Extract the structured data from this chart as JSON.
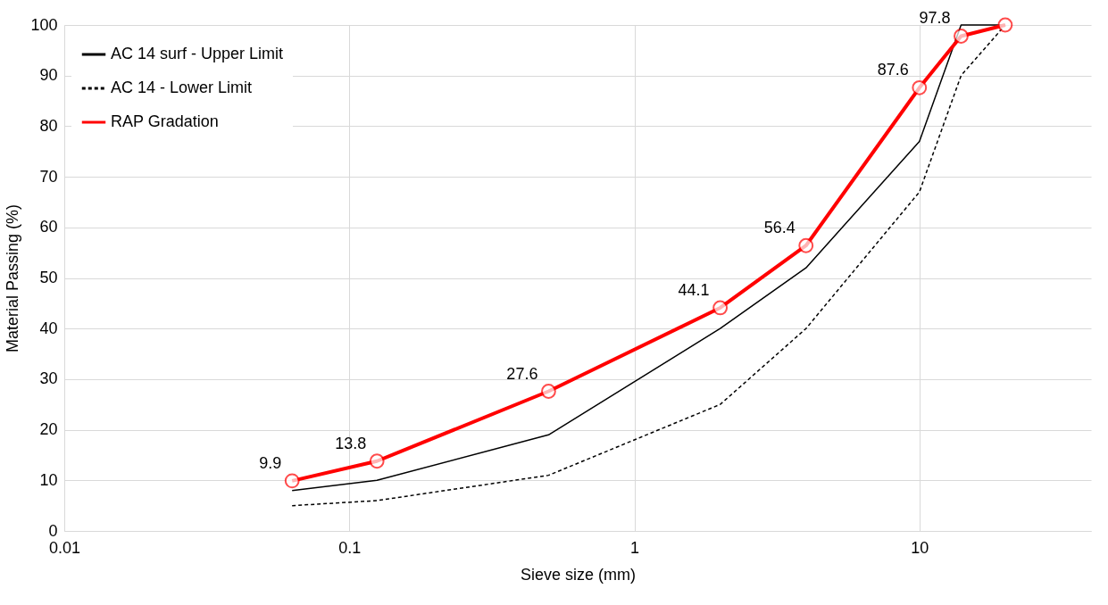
{
  "chart_data": {
    "type": "line",
    "xlabel": "Sieve size (mm)",
    "ylabel": "Material Passing (%)",
    "x": [
      0.063,
      0.125,
      0.5,
      2,
      4,
      10,
      14,
      20
    ],
    "series": [
      {
        "name": "AC 14 surf - Upper Limit",
        "color": "#000000",
        "line_style": "solid",
        "marker": "none",
        "values": [
          8,
          10,
          19,
          40,
          52,
          77,
          100,
          100
        ]
      },
      {
        "name": "AC 14 - Lower Limit",
        "color": "#000000",
        "line_style": "dashed",
        "marker": "none",
        "values": [
          5,
          6,
          11,
          25,
          40,
          67,
          90,
          100
        ]
      },
      {
        "name": "RAP Gradation",
        "color": "#ff0000",
        "line_style": "solid",
        "marker": "circle",
        "values": [
          9.9,
          13.8,
          27.6,
          44.1,
          56.4,
          87.6,
          97.8,
          100
        ],
        "value_labels": [
          "9.9",
          "13.8",
          "27.6",
          "44.1",
          "56.4",
          "87.6",
          "97.8",
          null
        ]
      }
    ],
    "log": "x",
    "xlim": [
      0.01,
      40
    ],
    "xticks": [
      0.01,
      0.1,
      1,
      10
    ],
    "ylim": [
      0,
      100
    ],
    "yticks": [
      0,
      10,
      20,
      30,
      40,
      50,
      60,
      70,
      80,
      90,
      100
    ],
    "grid": true,
    "legend": "top left"
  }
}
